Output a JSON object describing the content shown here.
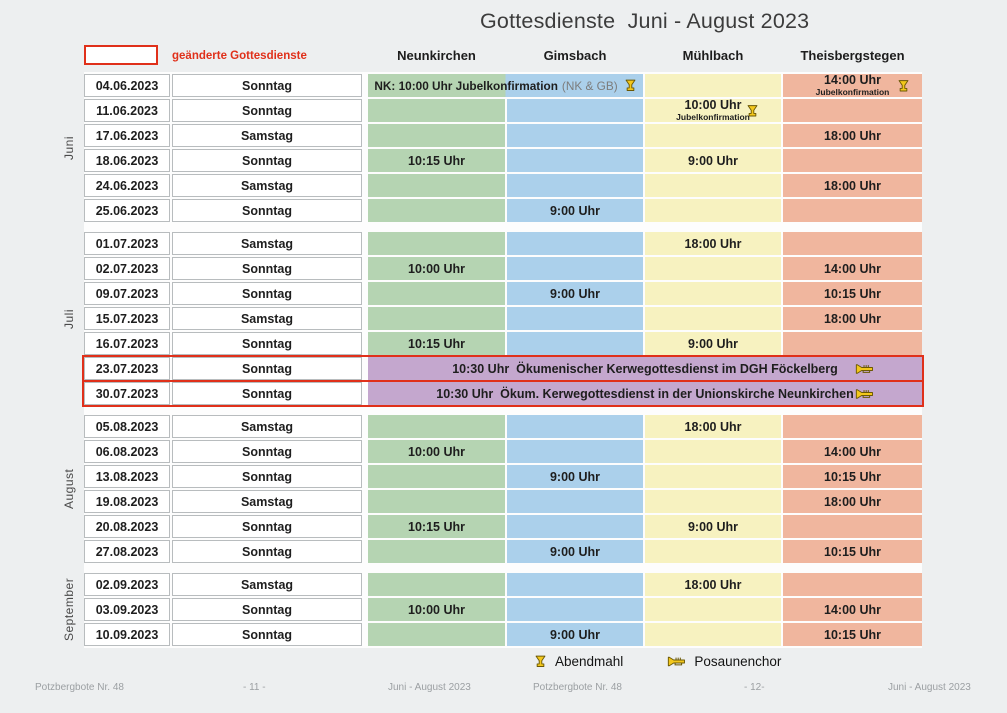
{
  "title": "Gottesdienste  Juni - August 2023",
  "legend_top": {
    "label": "geänderte Gottesdienste"
  },
  "columns": [
    "Neunkirchen",
    "Gimsbach",
    "Mühlbach",
    "Theisbergstegen"
  ],
  "colors": {
    "neunkirchen": "#b5d4b2",
    "gimsbach": "#abd0eb",
    "muehlbach": "#f7f2c0",
    "theisbergstegen": "#f0b69e",
    "special_purple": "#c4a7ce",
    "alert_red": "#e0301a"
  },
  "months": [
    {
      "name": "Juni",
      "rows": [
        {
          "date": "04.06.2023",
          "day": "Sonntag",
          "merge_nk_gb": {
            "text": "NK: 10:00 Uhr Jubelkonfirmation",
            "note": "(NK & GB)",
            "icon": "chalice-icon"
          },
          "mb": "",
          "tb": {
            "time": "14:00 Uhr",
            "sub": "Jubelkonfirmation",
            "icon": "chalice-icon"
          }
        },
        {
          "date": "11.06.2023",
          "day": "Sonntag",
          "nk": "",
          "gb": "",
          "mb": {
            "time": "10:00 Uhr",
            "sub": "Jubelkonfirmation",
            "icon": "chalice-icon"
          },
          "tb": ""
        },
        {
          "date": "17.06.2023",
          "day": "Samstag",
          "nk": "",
          "gb": "",
          "mb": "",
          "tb": "18:00 Uhr"
        },
        {
          "date": "18.06.2023",
          "day": "Sonntag",
          "nk": "10:15 Uhr",
          "gb": "",
          "mb": "9:00 Uhr",
          "tb": ""
        },
        {
          "date": "24.06.2023",
          "day": "Samstag",
          "nk": "",
          "gb": "",
          "mb": "",
          "tb": "18:00 Uhr"
        },
        {
          "date": "25.06.2023",
          "day": "Sonntag",
          "nk": "",
          "gb": "9:00 Uhr",
          "mb": "",
          "tb": ""
        }
      ]
    },
    {
      "name": "Juli",
      "rows": [
        {
          "date": "01.07.2023",
          "day": "Samstag",
          "nk": "",
          "gb": "",
          "mb": "18:00 Uhr",
          "tb": ""
        },
        {
          "date": "02.07.2023",
          "day": "Sonntag",
          "nk": "10:00 Uhr",
          "gb": "",
          "mb": "",
          "tb": "14:00 Uhr"
        },
        {
          "date": "09.07.2023",
          "day": "Sonntag",
          "nk": "",
          "gb": "9:00 Uhr",
          "mb": "",
          "tb": "10:15 Uhr"
        },
        {
          "date": "15.07.2023",
          "day": "Samstag",
          "nk": "",
          "gb": "",
          "mb": "",
          "tb": "18:00 Uhr"
        },
        {
          "date": "16.07.2023",
          "day": "Sonntag",
          "nk": "10:15 Uhr",
          "gb": "",
          "mb": "9:00 Uhr",
          "tb": ""
        },
        {
          "date": "23.07.2023",
          "day": "Sonntag",
          "alert": true,
          "merge_all": {
            "text": "10:30 Uhr  Ökumenischer Kerwegottesdienst im DGH Föckelberg",
            "icon": "trumpet-icon"
          }
        },
        {
          "date": "30.07.2023",
          "day": "Sonntag",
          "alert": true,
          "merge_all": {
            "text": "10:30 Uhr  Ökum. Kerwegottesdienst in der Unionskirche Neunkirchen",
            "icon": "trumpet-icon"
          }
        }
      ]
    },
    {
      "name": "August",
      "rows": [
        {
          "date": "05.08.2023",
          "day": "Samstag",
          "nk": "",
          "gb": "",
          "mb": "18:00 Uhr",
          "tb": ""
        },
        {
          "date": "06.08.2023",
          "day": "Sonntag",
          "nk": "10:00 Uhr",
          "gb": "",
          "mb": "",
          "tb": "14:00 Uhr"
        },
        {
          "date": "13.08.2023",
          "day": "Sonntag",
          "nk": "",
          "gb": "9:00 Uhr",
          "mb": "",
          "tb": "10:15 Uhr"
        },
        {
          "date": "19.08.2023",
          "day": "Samstag",
          "nk": "",
          "gb": "",
          "mb": "",
          "tb": "18:00 Uhr"
        },
        {
          "date": "20.08.2023",
          "day": "Sonntag",
          "nk": "10:15 Uhr",
          "gb": "",
          "mb": "9:00 Uhr",
          "tb": ""
        },
        {
          "date": "27.08.2023",
          "day": "Sonntag",
          "nk": "",
          "gb": "9:00 Uhr",
          "mb": "",
          "tb": "10:15 Uhr"
        }
      ]
    },
    {
      "name": "September",
      "rows": [
        {
          "date": "02.09.2023",
          "day": "Samstag",
          "nk": "",
          "gb": "",
          "mb": "18:00 Uhr",
          "tb": ""
        },
        {
          "date": "03.09.2023",
          "day": "Sonntag",
          "nk": "10:00 Uhr",
          "gb": "",
          "mb": "",
          "tb": "14:00 Uhr"
        },
        {
          "date": "10.09.2023",
          "day": "Sonntag",
          "nk": "",
          "gb": "9:00 Uhr",
          "mb": "",
          "tb": "10:15 Uhr"
        }
      ]
    }
  ],
  "bottom_legend": [
    {
      "icon": "chalice-icon",
      "label": "Abendmahl"
    },
    {
      "icon": "trumpet-icon",
      "label": "Posaunenchor"
    }
  ],
  "footer": [
    "Potzbergbote Nr. 48",
    "- 11 -",
    "Juni - August 2023",
    "Potzbergbote Nr. 48",
    "- 12-",
    "Juni - August 2023"
  ]
}
